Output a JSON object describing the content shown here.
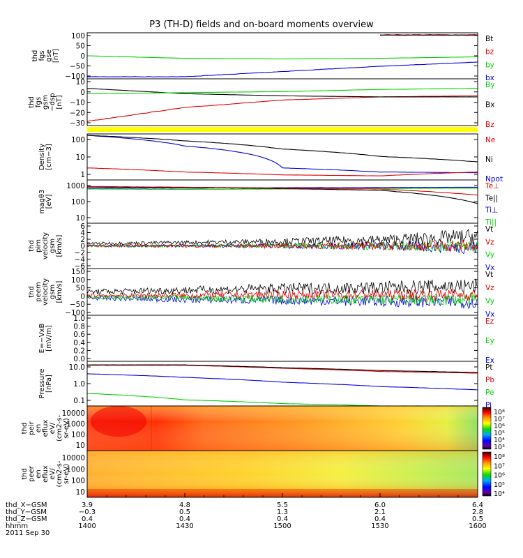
{
  "title": "P3 (TH-D) fields and on-board moments overview",
  "colors": {
    "black": "#000000",
    "red": "#e00000",
    "green": "#00d000",
    "blue": "#0000e0",
    "yellow": "#ffff00",
    "darkred": "#7a0000"
  },
  "panels": [
    {
      "id": "fgs-gse",
      "ylabel": [
        "thd",
        "fgs",
        "gse",
        "[nT]"
      ],
      "ylim": [
        -110,
        110
      ],
      "log": false,
      "ticks": [
        "100",
        "50",
        "0",
        "−50",
        "−100"
      ],
      "legend": [
        {
          "text": "Bt",
          "color": "black"
        },
        {
          "text": "bz",
          "color": "red"
        },
        {
          "text": "by",
          "color": "green"
        },
        {
          "text": "bx",
          "color": "blue"
        }
      ]
    },
    {
      "id": "fgs-gsm",
      "ylabel": [
        "thd",
        "fgs",
        "gsm",
        "−dsp",
        "[nT]"
      ],
      "ylim": [
        -32,
        12
      ],
      "log": false,
      "ticks": [
        "10",
        "0",
        "−10",
        "−20",
        "−30"
      ],
      "legend": [
        {
          "text": "By",
          "color": "green"
        },
        {
          "text": "Bx",
          "color": "black"
        },
        {
          "text": "Bz",
          "color": "red"
        }
      ]
    },
    {
      "id": "density",
      "ylabel": [
        "Density",
        "[cm−3]"
      ],
      "log": true,
      "ticks": [
        "100",
        "10",
        "1"
      ],
      "legend": [
        {
          "text": "Ne",
          "color": "red"
        },
        {
          "text": "Ni",
          "color": "black"
        },
        {
          "text": "Npot",
          "color": "blue"
        }
      ]
    },
    {
      "id": "temp",
      "ylabel": [
        "magθ3",
        "[eV]"
      ],
      "log": true,
      "ticks": [
        "1000",
        "100",
        "10"
      ],
      "legend": [
        {
          "text": "Te⊥",
          "color": "red"
        },
        {
          "text": "Te||",
          "color": "black"
        },
        {
          "text": "Ti⊥",
          "color": "blue"
        },
        {
          "text": "Ti||",
          "color": "green"
        }
      ]
    },
    {
      "id": "vi",
      "ylabel": [
        "thd",
        "pim",
        "velocity",
        "gsm",
        "[km/s]"
      ],
      "ylim": [
        -6,
        6
      ],
      "log": false,
      "ticks": [
        "6",
        "4",
        "2",
        "0",
        "−2",
        "−4",
        "−6"
      ],
      "legend": [
        {
          "text": "Vt",
          "color": "black"
        },
        {
          "text": "Vz",
          "color": "red"
        },
        {
          "text": "Vy",
          "color": "green"
        },
        {
          "text": "Vx",
          "color": "blue"
        }
      ]
    },
    {
      "id": "ve",
      "ylabel": [
        "thd",
        "peem",
        "velocity",
        "gsm",
        "[km/s]"
      ],
      "ylim": [
        -110,
        160
      ],
      "log": false,
      "ticks": [
        "150",
        "100",
        "50",
        "0",
        "−50",
        "−100"
      ],
      "legend": [
        {
          "text": "Vt",
          "color": "black"
        },
        {
          "text": "Vz",
          "color": "red"
        },
        {
          "text": "Vy",
          "color": "green"
        },
        {
          "text": "Vx",
          "color": "blue"
        }
      ]
    },
    {
      "id": "efield",
      "ylabel": [
        "E=−VxB",
        "[mV/m]"
      ],
      "ylim": [
        0,
        1
      ],
      "log": false,
      "ticks": [
        "1.0",
        "0.8",
        "0.6",
        "0.4",
        "0.2",
        "0.0"
      ],
      "legend": [
        {
          "text": "Ez",
          "color": "red"
        },
        {
          "text": "Ey",
          "color": "green"
        },
        {
          "text": "Ex",
          "color": "blue"
        }
      ]
    },
    {
      "id": "pressure",
      "ylabel": [
        "Pressure",
        "[nPa]"
      ],
      "log": true,
      "ticks": [
        "10.0",
        "1.0",
        "0.1"
      ],
      "legend": [
        {
          "text": "Pt",
          "color": "black"
        },
        {
          "text": "Pb",
          "color": "red"
        },
        {
          "text": "Pe",
          "color": "green"
        },
        {
          "text": "Pi",
          "color": "blue"
        }
      ]
    },
    {
      "id": "peir",
      "ylabel": [
        "thd",
        "peir",
        "en",
        "eflux",
        "eV/",
        "(cm2-s-",
        "sr-eV)"
      ],
      "ticks": [
        "10000",
        "1000",
        "100",
        "10"
      ],
      "colorbar": [
        "10⁸",
        "10⁷",
        "10⁶",
        "10⁵",
        "10⁴",
        "10³"
      ]
    },
    {
      "id": "peer",
      "ylabel": [
        "thd",
        "peer",
        "en",
        "eflux",
        "eV/",
        "(cm2-s-",
        "sr-eV)"
      ],
      "ticks": [
        "10000",
        "1000",
        "100",
        "10"
      ],
      "colorbar": [
        "10⁸",
        "10⁷",
        "10⁶",
        "10⁵",
        "10⁴"
      ]
    }
  ],
  "xaxis": {
    "rows": [
      {
        "label": "thd_X−GSM",
        "values": [
          "3.9",
          "4.8",
          "5.5",
          "6.0",
          "6.4"
        ]
      },
      {
        "label": "thd_Y−GSM",
        "values": [
          "−0.3",
          "0.5",
          "1.3",
          "2.1",
          "2.8"
        ]
      },
      {
        "label": "thd_Z−GSM",
        "values": [
          "0.4",
          "0.4",
          "0.4",
          "0.4",
          "0.5"
        ]
      },
      {
        "label": "hhmm",
        "values": [
          "1400",
          "1430",
          "1500",
          "1530",
          "1600"
        ]
      }
    ],
    "date": "2011 Sep 30"
  },
  "chart_data": [
    {
      "type": "line",
      "title": "P3 (TH-D) fields and on-board moments overview",
      "xlabel": "hhmm",
      "x": [
        "1400",
        "1430",
        "1500",
        "1530",
        "1600"
      ],
      "ylabel": "thd fgs gse [nT]",
      "ylim": [
        -110,
        110
      ],
      "series": [
        {
          "name": "Bt",
          "values": [
            null,
            null,
            null,
            null,
            100
          ]
        },
        {
          "name": "bz",
          "values": [
            null,
            null,
            null,
            null,
            98
          ]
        },
        {
          "name": "by",
          "values": [
            0,
            -12,
            -15,
            -12,
            -5
          ]
        },
        {
          "name": "bx",
          "values": [
            null,
            -100,
            -75,
            -50,
            -30
          ]
        }
      ]
    },
    {
      "type": "line",
      "ylabel": "thd fgs gsm -dsp [nT]",
      "ylim": [
        -32,
        12
      ],
      "series": [
        {
          "name": "By",
          "values": [
            -2,
            -1,
            0,
            2,
            3
          ]
        },
        {
          "name": "Bx",
          "values": [
            3,
            -2,
            -4,
            -5,
            -5
          ]
        },
        {
          "name": "Bz",
          "values": [
            -28,
            -15,
            -8,
            -5,
            -4
          ]
        }
      ]
    },
    {
      "type": "line",
      "ylabel": "Density [cm-3]",
      "ylim": [
        1,
        200
      ],
      "log": true,
      "series": [
        {
          "name": "Ne",
          "values": [
            4,
            2.5,
            1.8,
            1.6,
            2.5
          ]
        },
        {
          "name": "Ni",
          "values": [
            170,
            90,
            35,
            15,
            8
          ]
        },
        {
          "name": "Npot",
          "values": [
            170,
            50,
            4,
            2.5,
            2.3
          ]
        }
      ]
    },
    {
      "type": "line",
      "ylabel": "magθ3 [eV]",
      "ylim": [
        10,
        1000
      ],
      "log": true,
      "series": [
        {
          "name": "Te⊥",
          "values": [
            500,
            460,
            420,
            380,
            200
          ]
        },
        {
          "name": "Te||",
          "values": [
            480,
            440,
            400,
            330,
            80
          ]
        },
        {
          "name": "Ti⊥",
          "values": [
            420,
            420,
            440,
            450,
            460
          ]
        },
        {
          "name": "Ti||",
          "values": [
            380,
            370,
            380,
            400,
            420
          ]
        }
      ]
    },
    {
      "type": "line",
      "ylabel": "thd pim velocity gsm [km/s]",
      "ylim": [
        -6,
        6
      ],
      "series": [
        {
          "name": "Vt",
          "values": [
            0.6,
            0.9,
            1.2,
            1.5,
            2.5
          ]
        },
        {
          "name": "Vz",
          "values": [
            0,
            0,
            0,
            0,
            0
          ]
        },
        {
          "name": "Vy",
          "values": [
            0,
            0,
            0,
            0,
            0
          ]
        },
        {
          "name": "Vx",
          "values": [
            0,
            0,
            0,
            0,
            -0.5
          ]
        }
      ]
    },
    {
      "type": "line",
      "ylabel": "thd peem velocity gsm [km/s]",
      "ylim": [
        -110,
        160
      ],
      "series": [
        {
          "name": "Vt",
          "values": [
            25,
            35,
            45,
            50,
            60
          ]
        },
        {
          "name": "Vz",
          "values": [
            5,
            5,
            10,
            10,
            10
          ]
        },
        {
          "name": "Vy",
          "values": [
            -5,
            -10,
            -15,
            -20,
            -20
          ]
        },
        {
          "name": "Vx",
          "values": [
            -10,
            -20,
            -25,
            -30,
            -35
          ]
        }
      ]
    },
    {
      "type": "line",
      "ylabel": "E=-VxB [mV/m]",
      "ylim": [
        0,
        1
      ],
      "series": [
        {
          "name": "Ez",
          "values": []
        },
        {
          "name": "Ey",
          "values": []
        },
        {
          "name": "Ex",
          "values": []
        }
      ]
    },
    {
      "type": "line",
      "ylabel": "Pressure [nPa]",
      "ylim": [
        0.05,
        30
      ],
      "log": true,
      "series": [
        {
          "name": "Pt",
          "values": [
            null,
            18,
            12,
            8,
            6
          ]
        },
        {
          "name": "Pb",
          "values": [
            null,
            17,
            11,
            7,
            5.5
          ]
        },
        {
          "name": "Pe",
          "values": [
            0.3,
            0.12,
            0.07,
            0.05,
            0.05
          ]
        },
        {
          "name": "Pi",
          "values": [
            5,
            3,
            1.5,
            0.8,
            0.5
          ]
        }
      ]
    },
    {
      "type": "heatmap",
      "ylabel": "thd peir en eflux eV/(cm2-s-sr-eV)",
      "ylim": [
        5,
        30000
      ],
      "log": true,
      "colorbar_range": [
        "10³",
        "10⁸"
      ]
    },
    {
      "type": "heatmap",
      "ylabel": "thd peer en eflux eV/(cm2-s-sr-eV)",
      "ylim": [
        5,
        30000
      ],
      "log": true,
      "colorbar_range": [
        "10⁴",
        "10⁸"
      ]
    }
  ]
}
